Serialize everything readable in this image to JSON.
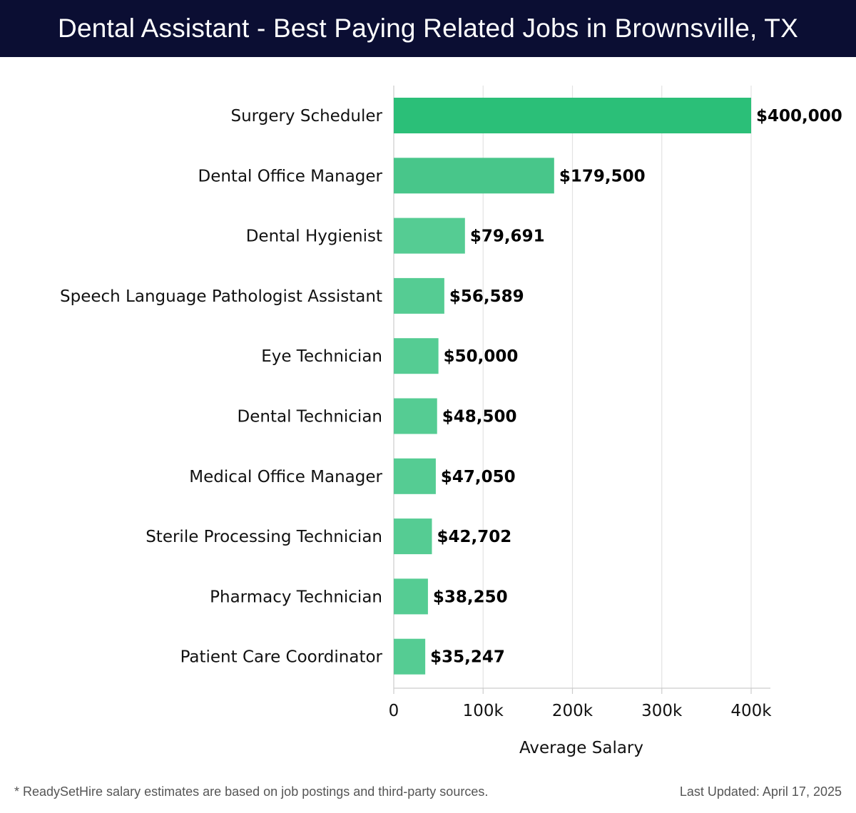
{
  "header": {
    "title": "Dental Assistant - Best Paying Related Jobs in Brownsville, TX"
  },
  "chart_data": {
    "type": "bar",
    "orientation": "horizontal",
    "title": "Dental Assistant - Best Paying Related Jobs in Brownsville, TX",
    "xlabel": "Average Salary",
    "ylabel": "",
    "xlim": [
      0,
      400000
    ],
    "x_ticks": [
      0,
      100000,
      200000,
      300000,
      400000
    ],
    "x_tick_labels": [
      "0",
      "100k",
      "200k",
      "300k",
      "400k"
    ],
    "grid": true,
    "categories": [
      "Surgery Scheduler",
      "Dental Office Manager",
      "Dental Hygienist",
      "Speech Language Pathologist Assistant",
      "Eye Technician",
      "Dental Technician",
      "Medical Office Manager",
      "Sterile Processing Technician",
      "Pharmacy Technician",
      "Patient Care Coordinator"
    ],
    "values": [
      400000,
      179500,
      79691,
      56589,
      50000,
      48500,
      47050,
      42702,
      38250,
      35247
    ],
    "value_labels": [
      "$400,000",
      "$179,500",
      "$79,691",
      "$56,589",
      "$50,000",
      "$48,500",
      "$47,050",
      "$42,702",
      "$38,250",
      "$35,247"
    ],
    "colors": {
      "top_bar": "#2bbf78",
      "second_bar": "#48c68a",
      "bar": "#55cc93",
      "grid": "#e3e3e3",
      "axis": "#cccccc"
    }
  },
  "footer": {
    "note": "* ReadySetHire salary estimates are based on job postings and third-party sources.",
    "updated": "Last Updated: April 17, 2025"
  }
}
